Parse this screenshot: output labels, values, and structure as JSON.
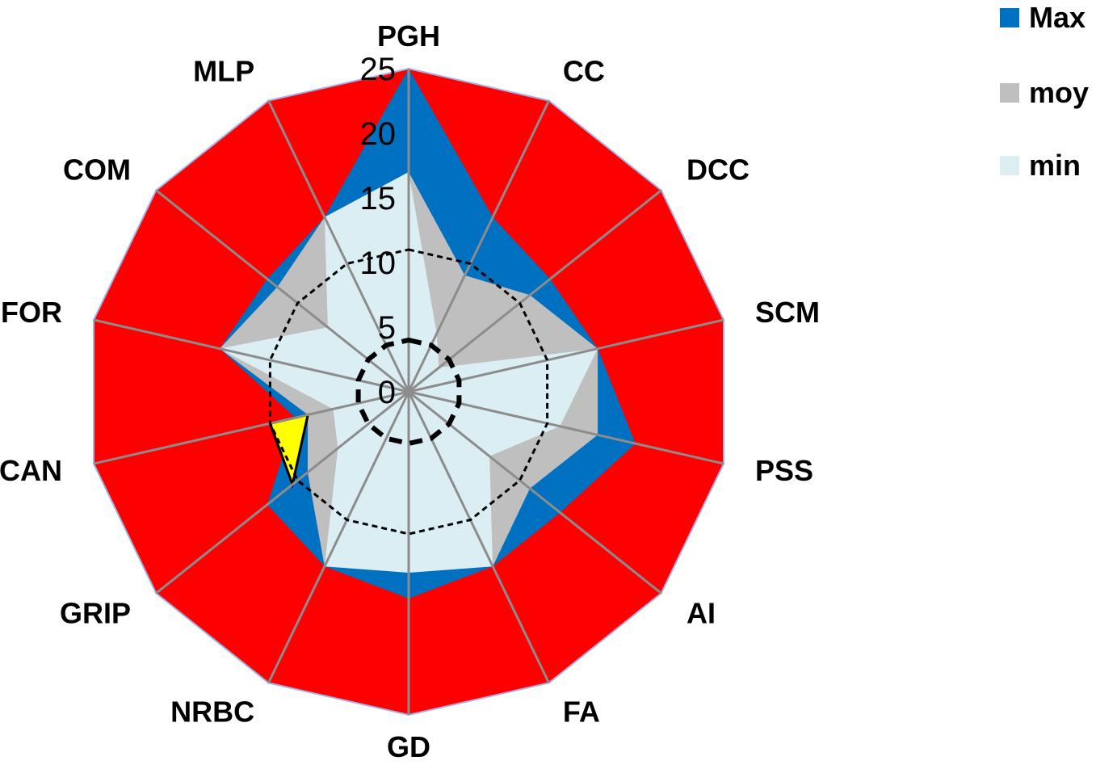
{
  "chart_data": {
    "type": "radar",
    "axes": [
      "PGH",
      "CC",
      "DCC",
      "SCM",
      "PSS",
      "AI",
      "FA",
      "GD",
      "NRBC",
      "GRIP",
      "CAN",
      "FOR",
      "COM",
      "MLP"
    ],
    "rlim": [
      0,
      25
    ],
    "ticks": [
      "0",
      "5",
      "10",
      "15",
      "20",
      "25"
    ],
    "tick_values": [
      0,
      5,
      10,
      15,
      20,
      25
    ],
    "series": [
      {
        "name": "",
        "color": "#ff0000",
        "values": [
          25,
          25,
          25,
          25,
          25,
          25,
          25,
          25,
          25,
          25,
          25,
          25,
          25,
          25
        ]
      },
      {
        "name": "Max",
        "color": "#0070c0",
        "values": [
          25,
          15,
          14,
          15,
          18,
          15,
          15,
          16,
          15,
          14,
          9,
          15,
          14,
          15
        ]
      },
      {
        "name": "moy",
        "color": "#bfbfbf",
        "values": [
          17,
          10,
          12,
          15,
          15,
          12,
          15,
          13,
          15,
          10,
          8,
          15,
          13,
          15
        ]
      },
      {
        "name": "min",
        "color": "#dbeef4",
        "values": [
          17,
          5,
          3,
          15,
          12,
          8,
          15,
          14,
          15,
          7,
          6,
          15,
          8,
          15
        ]
      }
    ],
    "highlight": {
      "color": "#ffff00",
      "axis_index": 10,
      "from": 8,
      "to": 11
    },
    "reference_circles": [
      {
        "value": 4,
        "style": "thick-dashed"
      },
      {
        "value": 11,
        "style": "dashed"
      }
    ],
    "legend": {
      "placement": "top-right",
      "items": [
        {
          "label": "Max",
          "color": "#0070c0"
        },
        {
          "label": "moy",
          "color": "#bfbfbf"
        },
        {
          "label": "min",
          "color": "#dbeef4"
        }
      ]
    }
  }
}
